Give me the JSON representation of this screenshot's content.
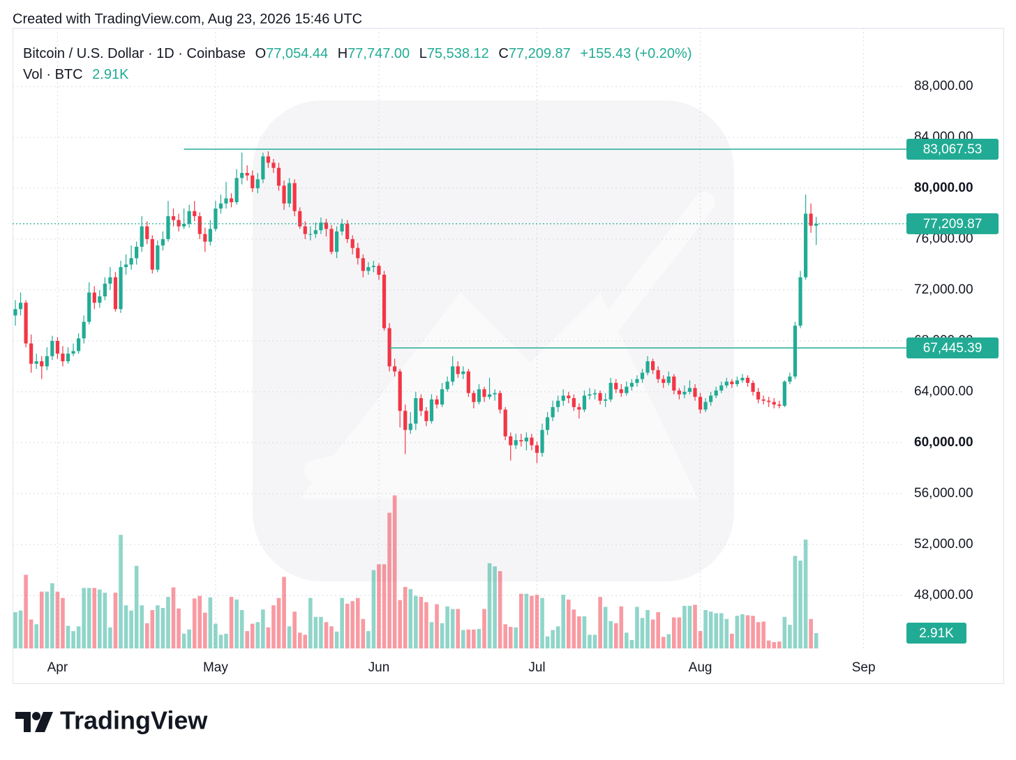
{
  "chart_data": {
    "type": "candlestick",
    "credit": "Created with TradingView.com, Aug 23, 2026 15:46 UTC",
    "brand": "TradingView",
    "legend": {
      "symbol": "Bitcoin / U.S. Dollar · 1D · Coinbase",
      "fields": [
        {
          "name": "O",
          "value": "77,054.44"
        },
        {
          "name": "H",
          "value": "77,747.00"
        },
        {
          "name": "L",
          "value": "75,538.12"
        },
        {
          "name": "C",
          "value": "77,209.87"
        }
      ],
      "change": "+155.43 (+0.20%)",
      "volume_name": "Vol · BTC",
      "volume": "2.91K"
    },
    "up_color": "#22ab94",
    "down_color": "#f23645",
    "line_color": "#22ab94",
    "xlim": [
      -0.53,
      168.6
    ],
    "xticks": [
      {
        "value": 8,
        "label": "Apr"
      },
      {
        "value": 38,
        "label": "May"
      },
      {
        "value": 69,
        "label": "Jun"
      },
      {
        "value": 99,
        "label": "Jul"
      },
      {
        "value": 130,
        "label": "Aug"
      },
      {
        "value": 161,
        "label": "Sep"
      }
    ],
    "ylim": [
      43830,
      92600
    ],
    "yticks": [
      {
        "value": 48000,
        "label": "48,000.00"
      },
      {
        "value": 52000,
        "label": "52,000.00"
      },
      {
        "value": 56000,
        "label": "56,000.00"
      },
      {
        "value": 60000,
        "label": "60,000.00"
      },
      {
        "value": 64000,
        "label": "64,000.00"
      },
      {
        "value": 68000,
        "label": "68,000.00"
      },
      {
        "value": 72000,
        "label": "72,000.00"
      },
      {
        "value": 76000,
        "label": "76,000.00"
      },
      {
        "value": 80000,
        "label": "80,000.00"
      },
      {
        "value": 84000,
        "label": "84,000.00"
      },
      {
        "value": 88000,
        "label": "88,000.00"
      }
    ],
    "volume_lim": [
      0,
      118
    ],
    "grid": true,
    "hlines": [
      {
        "value": 83067.53,
        "label": "83,067.53",
        "start": 32
      },
      {
        "value": 67445.39,
        "label": "67,445.39",
        "start": 71
      }
    ],
    "candles": [
      [
        70000,
        71200,
        69200,
        70500
      ],
      [
        70500,
        71800,
        70000,
        71000
      ],
      [
        71000,
        71200,
        67500,
        67800
      ],
      [
        67800,
        68500,
        65500,
        66200
      ],
      [
        66200,
        67000,
        65800,
        66400
      ],
      [
        66400,
        66800,
        65000,
        66000
      ],
      [
        66000,
        67500,
        65700,
        66800
      ],
      [
        66800,
        68400,
        66500,
        68000
      ],
      [
        68000,
        68300,
        66600,
        67000
      ],
      [
        67000,
        67600,
        66000,
        66400
      ],
      [
        66400,
        67500,
        66200,
        67000
      ],
      [
        67000,
        67800,
        66800,
        67200
      ],
      [
        67200,
        68600,
        67000,
        68200
      ],
      [
        68200,
        70000,
        67800,
        69500
      ],
      [
        69500,
        72600,
        69300,
        71800
      ],
      [
        71800,
        72300,
        70500,
        71000
      ],
      [
        71000,
        72000,
        70600,
        71500
      ],
      [
        71500,
        73000,
        71200,
        72500
      ],
      [
        72500,
        73800,
        72000,
        73000
      ],
      [
        73000,
        73400,
        70300,
        70500
      ],
      [
        70500,
        74300,
        70200,
        73800
      ],
      [
        73800,
        74800,
        73200,
        74000
      ],
      [
        74000,
        75500,
        73600,
        74500
      ],
      [
        74500,
        75800,
        74000,
        75400
      ],
      [
        75400,
        77800,
        75000,
        77000
      ],
      [
        77000,
        77400,
        75600,
        76000
      ],
      [
        76000,
        76300,
        73300,
        73600
      ],
      [
        73600,
        75900,
        73400,
        75500
      ],
      [
        75500,
        76600,
        75100,
        76000
      ],
      [
        76000,
        79000,
        75800,
        77800
      ],
      [
        77800,
        78400,
        77000,
        77500
      ],
      [
        77500,
        78000,
        76600,
        77000
      ],
      [
        77000,
        78400,
        76800,
        77200
      ],
      [
        77200,
        78700,
        76900,
        78200
      ],
      [
        78200,
        79000,
        77400,
        77800
      ],
      [
        77800,
        78100,
        76000,
        76400
      ],
      [
        76400,
        76900,
        75000,
        75800
      ],
      [
        75800,
        77500,
        75500,
        76800
      ],
      [
        76800,
        79000,
        76600,
        78400
      ],
      [
        78400,
        79500,
        78000,
        78800
      ],
      [
        78800,
        80500,
        78400,
        79200
      ],
      [
        79200,
        79600,
        78500,
        78900
      ],
      [
        78900,
        81500,
        78700,
        80800
      ],
      [
        80800,
        82800,
        80300,
        81200
      ],
      [
        81200,
        81800,
        80600,
        81000
      ],
      [
        81000,
        81400,
        79700,
        80000
      ],
      [
        80000,
        81200,
        79600,
        80700
      ],
      [
        80700,
        82800,
        80400,
        82500
      ],
      [
        82500,
        82900,
        81600,
        82000
      ],
      [
        82000,
        82300,
        81200,
        81600
      ],
      [
        81600,
        82000,
        79800,
        80200
      ],
      [
        80200,
        80600,
        78300,
        78800
      ],
      [
        78800,
        80800,
        78500,
        80400
      ],
      [
        80400,
        80700,
        77800,
        78200
      ],
      [
        78200,
        78500,
        76800,
        77000
      ],
      [
        77000,
        77400,
        76000,
        76400
      ],
      [
        76400,
        77000,
        75900,
        76400
      ],
      [
        76400,
        77300,
        76100,
        76700
      ],
      [
        76700,
        77700,
        76400,
        77300
      ],
      [
        77300,
        77600,
        76200,
        76800
      ],
      [
        76800,
        77100,
        74800,
        75000
      ],
      [
        75000,
        77000,
        74500,
        76600
      ],
      [
        76600,
        77600,
        76300,
        77200
      ],
      [
        77200,
        77500,
        75700,
        76000
      ],
      [
        76000,
        76300,
        74800,
        75300
      ],
      [
        75300,
        75700,
        74000,
        74500
      ],
      [
        74500,
        74800,
        73000,
        73500
      ],
      [
        73500,
        74200,
        73200,
        73800
      ],
      [
        73800,
        74300,
        73400,
        73900
      ],
      [
        73900,
        74100,
        72800,
        73200
      ],
      [
        73200,
        73500,
        68800,
        69000
      ],
      [
        69000,
        69400,
        65600,
        66000
      ],
      [
        66000,
        66600,
        65200,
        65600
      ],
      [
        65600,
        65800,
        61200,
        62500
      ],
      [
        62500,
        63000,
        59100,
        61000
      ],
      [
        61000,
        62400,
        60700,
        61500
      ],
      [
        61500,
        64000,
        61000,
        63500
      ],
      [
        63500,
        63800,
        62100,
        62500
      ],
      [
        62500,
        62800,
        61300,
        61700
      ],
      [
        61700,
        63800,
        61500,
        63400
      ],
      [
        63400,
        63700,
        62700,
        63000
      ],
      [
        63000,
        64700,
        62800,
        64200
      ],
      [
        64200,
        65200,
        64000,
        64800
      ],
      [
        64800,
        66800,
        64500,
        66000
      ],
      [
        66000,
        66400,
        65100,
        65400
      ],
      [
        65400,
        66000,
        65000,
        65600
      ],
      [
        65600,
        65800,
        63600,
        63900
      ],
      [
        63900,
        64100,
        62700,
        63200
      ],
      [
        63200,
        64600,
        63000,
        64200
      ],
      [
        64200,
        64400,
        63200,
        63600
      ],
      [
        63600,
        65100,
        63400,
        63800
      ],
      [
        63800,
        64200,
        63300,
        63900
      ],
      [
        63900,
        64100,
        62300,
        62600
      ],
      [
        62600,
        62800,
        60200,
        60500
      ],
      [
        60500,
        60800,
        58600,
        59800
      ],
      [
        59800,
        60700,
        59500,
        60200
      ],
      [
        60200,
        60700,
        59700,
        60100
      ],
      [
        60100,
        60800,
        59400,
        60400
      ],
      [
        60400,
        60700,
        59400,
        59800
      ],
      [
        59800,
        60100,
        58400,
        59200
      ],
      [
        59200,
        61500,
        58900,
        61000
      ],
      [
        61000,
        62400,
        60600,
        62000
      ],
      [
        62000,
        63300,
        61700,
        62800
      ],
      [
        62800,
        63700,
        62400,
        63300
      ],
      [
        63300,
        64200,
        62900,
        63700
      ],
      [
        63700,
        64000,
        63100,
        63500
      ],
      [
        63500,
        63800,
        62500,
        62800
      ],
      [
        62800,
        63100,
        61900,
        62600
      ],
      [
        62600,
        64100,
        62400,
        63700
      ],
      [
        63700,
        64300,
        63400,
        63800
      ],
      [
        63800,
        64200,
        63400,
        63900
      ],
      [
        63900,
        64100,
        63000,
        63300
      ],
      [
        63300,
        63900,
        62800,
        63400
      ],
      [
        63400,
        65100,
        63200,
        64700
      ],
      [
        64700,
        65000,
        63900,
        64200
      ],
      [
        64200,
        64600,
        63600,
        63900
      ],
      [
        63900,
        64800,
        63700,
        64400
      ],
      [
        64400,
        65000,
        64100,
        64700
      ],
      [
        64700,
        65300,
        64400,
        65000
      ],
      [
        65000,
        65800,
        64700,
        65500
      ],
      [
        65500,
        66800,
        65300,
        66400
      ],
      [
        66400,
        66600,
        65400,
        65700
      ],
      [
        65700,
        66000,
        64700,
        65000
      ],
      [
        65000,
        65300,
        64300,
        64700
      ],
      [
        64700,
        65600,
        64500,
        65200
      ],
      [
        65200,
        65400,
        63800,
        64100
      ],
      [
        64100,
        64300,
        63400,
        63800
      ],
      [
        63800,
        64500,
        63500,
        64000
      ],
      [
        64000,
        64900,
        63800,
        64300
      ],
      [
        64300,
        64600,
        63300,
        63600
      ],
      [
        63600,
        63900,
        62300,
        62600
      ],
      [
        62600,
        63500,
        62400,
        63200
      ],
      [
        63200,
        64000,
        62900,
        63700
      ],
      [
        63700,
        64400,
        63500,
        64100
      ],
      [
        64100,
        64800,
        63900,
        64500
      ],
      [
        64500,
        65100,
        64300,
        64800
      ],
      [
        64800,
        65000,
        64300,
        64600
      ],
      [
        64600,
        65200,
        64400,
        64900
      ],
      [
        64900,
        65400,
        64700,
        65100
      ],
      [
        65100,
        65300,
        64400,
        64700
      ],
      [
        64700,
        64900,
        63700,
        64000
      ],
      [
        64000,
        64300,
        63100,
        63400
      ],
      [
        63400,
        63700,
        63000,
        63300
      ],
      [
        63300,
        63600,
        62800,
        63200
      ],
      [
        63200,
        63500,
        62700,
        63000
      ],
      [
        63000,
        63300,
        62700,
        62900
      ],
      [
        62900,
        64900,
        62800,
        64800
      ],
      [
        64800,
        65500,
        64600,
        65200
      ],
      [
        65200,
        69500,
        65000,
        69200
      ],
      [
        69200,
        73500,
        69000,
        73000
      ],
      [
        73000,
        79500,
        72800,
        78000
      ],
      [
        78000,
        78800,
        76500,
        77054.44
      ],
      [
        77054.44,
        77747.0,
        75538.12,
        77209.87
      ]
    ],
    "volume": [
      6.9,
      7.2,
      14,
      5.5,
      4.6,
      10.8,
      10.8,
      12.4,
      10.8,
      9.6,
      4.3,
      3.3,
      4.2,
      11.5,
      11.5,
      11.5,
      11.2,
      10.6,
      4.0,
      10.6,
      21.6,
      8.2,
      7.2,
      15.7,
      8.2,
      4.8,
      7.3,
      8.2,
      7.7,
      9.8,
      11.6,
      7.6,
      2.8,
      3.6,
      9.5,
      10.0,
      6.8,
      9.7,
      4.7,
      2.6,
      2.8,
      9.8,
      9.3,
      7.3,
      3.3,
      4.7,
      5.0,
      7.4,
      4.0,
      8.2,
      9.6,
      13.6,
      4.2,
      7.0,
      3.0,
      2.6,
      9.6,
      6.0,
      6.0,
      5.0,
      4.2,
      3.2,
      9.6,
      8.5,
      9.0,
      9.6,
      5.6,
      3.3,
      14.9,
      16.0,
      16.0,
      25.8,
      29.1,
      9.2,
      11.7,
      11.3,
      10.0,
      9.8,
      8.8,
      5.0,
      8.4,
      4.8,
      8.0,
      7.5,
      7.5,
      3.5,
      3.6,
      3.6,
      3.7,
      7.5,
      16.2,
      15.6,
      14.7,
      4.6,
      4.1,
      4.0,
      10.4,
      10.4,
      10.0,
      10.2,
      9.6,
      2.3,
      3.5,
      4.2,
      10.2,
      9.3,
      7.4,
      6.1,
      6.1,
      2.6,
      2.6,
      9.8,
      7.9,
      5.2,
      4.8,
      8.0,
      3.0,
      1.6,
      7.9,
      5.8,
      7.3,
      5.5,
      6.9,
      2.2,
      2.7,
      5.9,
      5.9,
      8.1,
      8.1,
      8.3,
      3.3,
      7.3,
      7.0,
      6.7,
      6.7,
      5.6,
      2.8,
      6.2,
      6.5,
      6.3,
      6.2,
      5.0,
      5.1,
      1.5,
      1.2,
      1.3,
      6.0,
      4.5,
      17.6,
      16.7,
      20.7,
      5.6,
      2.91
    ]
  }
}
